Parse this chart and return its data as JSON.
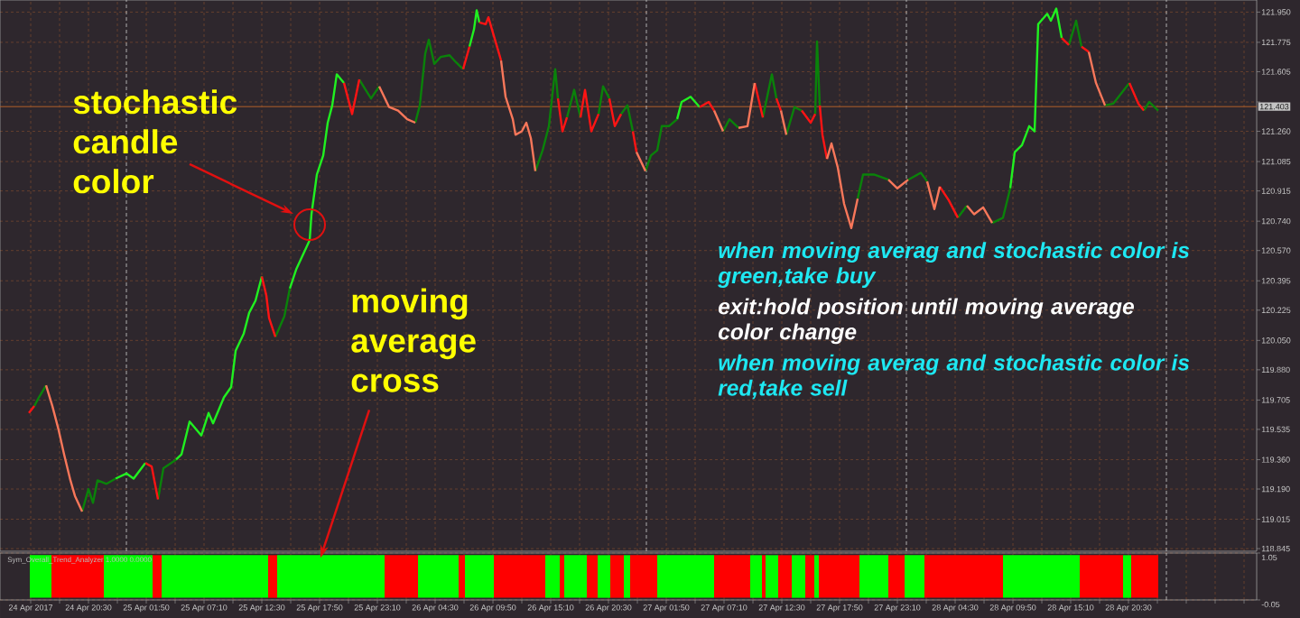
{
  "chart_data": [
    {
      "type": "line",
      "x": [
        "2017-04-24T15:00",
        "2017-04-24T15:30",
        "2017-04-24T15:55",
        "2017-04-24T16:35",
        "2017-04-24T17:10",
        "2017-04-24T17:45",
        "2017-04-24T18:15",
        "2017-04-24T18:50",
        "2017-04-24T19:15",
        "2017-04-24T19:55",
        "2017-04-24T20:30",
        "2017-04-24T20:55",
        "2017-04-24T21:20",
        "2017-04-24T22:10",
        "2017-04-24T23:00",
        "2017-04-25T00:00",
        "2017-04-25T00:40",
        "2017-04-25T01:45",
        "2017-04-25T02:20",
        "2017-04-25T02:55",
        "2017-04-25T03:25",
        "2017-04-25T04:35",
        "2017-04-25T05:05",
        "2017-04-25T05:50",
        "2017-04-25T06:55",
        "2017-04-25T07:35",
        "2017-04-25T08:00",
        "2017-04-25T09:00",
        "2017-04-25T09:40",
        "2017-04-25T10:05",
        "2017-04-25T10:50",
        "2017-04-25T11:20",
        "2017-04-25T11:55",
        "2017-04-25T12:30",
        "2017-04-25T12:55",
        "2017-04-25T13:10",
        "2017-04-25T13:45",
        "2017-04-25T14:35",
        "2017-04-25T15:05",
        "2017-04-25T15:40",
        "2017-04-25T16:55",
        "2017-04-25T17:05",
        "2017-04-25T17:35",
        "2017-04-25T18:10",
        "2017-04-25T18:35",
        "2017-04-25T19:00",
        "2017-04-25T19:25",
        "2017-04-25T20:05",
        "2017-04-25T20:50",
        "2017-04-25T21:30",
        "2017-04-25T22:05",
        "2017-04-25T22:35",
        "2017-04-25T23:20",
        "2017-04-26T00:15",
        "2017-04-26T01:05",
        "2017-04-26T01:55",
        "2017-04-26T02:40",
        "2017-04-26T03:05",
        "2017-04-26T03:35",
        "2017-04-26T03:55",
        "2017-04-26T04:25",
        "2017-04-26T05:00",
        "2017-04-26T05:50",
        "2017-04-26T06:25",
        "2017-04-26T07:05",
        "2017-04-26T07:40",
        "2017-04-26T08:05",
        "2017-04-26T08:20",
        "2017-04-26T08:35",
        "2017-04-26T09:10",
        "2017-04-26T09:25",
        "2017-04-26T09:50",
        "2017-04-26T10:10",
        "2017-04-26T10:35",
        "2017-04-26T11:00",
        "2017-04-26T11:40",
        "2017-04-26T11:55",
        "2017-04-26T12:30",
        "2017-04-26T12:55",
        "2017-04-26T13:20",
        "2017-04-26T13:45",
        "2017-04-26T14:25",
        "2017-04-26T15:00",
        "2017-04-26T15:35",
        "2017-04-26T15:50",
        "2017-04-26T16:15",
        "2017-04-26T16:40",
        "2017-04-26T17:20",
        "2017-04-26T17:55",
        "2017-04-26T18:20",
        "2017-04-26T18:55",
        "2017-04-26T19:35",
        "2017-04-26T20:00",
        "2017-04-26T20:35",
        "2017-04-26T21:05",
        "2017-04-26T21:40",
        "2017-04-26T22:15",
        "2017-04-26T22:45",
        "2017-04-26T23:05",
        "2017-04-26T23:55",
        "2017-04-27T00:25",
        "2017-04-27T01:00",
        "2017-04-27T01:25",
        "2017-04-27T02:05",
        "2017-04-27T02:50",
        "2017-04-27T03:15",
        "2017-04-27T04:05",
        "2017-04-27T04:55",
        "2017-04-27T05:45",
        "2017-04-27T06:15",
        "2017-04-27T07:05",
        "2017-04-27T07:40",
        "2017-04-27T08:30",
        "2017-04-27T09:20",
        "2017-04-27T10:00",
        "2017-04-27T10:45",
        "2017-04-27T11:35",
        "2017-04-27T12:00",
        "2017-04-27T12:25",
        "2017-04-27T12:55",
        "2017-04-27T13:40",
        "2017-04-27T14:20",
        "2017-04-27T15:10",
        "2017-04-27T15:35",
        "2017-04-27T15:45",
        "2017-04-27T16:00",
        "2017-04-27T16:15",
        "2017-04-27T16:40",
        "2017-04-27T17:05",
        "2017-04-27T17:40",
        "2017-04-27T18:15",
        "2017-04-27T18:55",
        "2017-04-27T19:30",
        "2017-04-27T20:00",
        "2017-04-27T21:00",
        "2017-04-27T22:20",
        "2017-04-27T23:10",
        "2017-04-28T00:10",
        "2017-04-28T01:20",
        "2017-04-28T01:55",
        "2017-04-28T02:35",
        "2017-04-28T03:05",
        "2017-04-28T03:55",
        "2017-04-28T04:45",
        "2017-04-28T05:35",
        "2017-04-28T06:15",
        "2017-04-28T07:05",
        "2017-04-28T07:55",
        "2017-04-28T08:55",
        "2017-04-28T09:35",
        "2017-04-28T10:00",
        "2017-04-28T10:40",
        "2017-04-28T11:20",
        "2017-04-28T11:50",
        "2017-04-28T12:10",
        "2017-04-28T13:00",
        "2017-04-28T13:20",
        "2017-04-28T13:50",
        "2017-04-28T14:20",
        "2017-04-28T15:00",
        "2017-04-28T15:40",
        "2017-04-28T16:10",
        "2017-04-28T16:50",
        "2017-04-28T17:30",
        "2017-04-28T18:20",
        "2017-04-28T19:05",
        "2017-04-28T20:35",
        "2017-04-28T21:25",
        "2017-04-28T21:55",
        "2017-04-28T22:25",
        "2017-04-28T23:15"
      ],
      "series": [
        {
          "color": "#20F020",
          "values": [
            null,
            null,
            null,
            null,
            null,
            null,
            null,
            null,
            null,
            null,
            null,
            null,
            null,
            null,
            119.25,
            119.28,
            119.25,
            119.34,
            null,
            null,
            null,
            119.36,
            119.39,
            119.58,
            119.5,
            119.63,
            119.57,
            119.72,
            119.78,
            119.99,
            120.09,
            120.21,
            120.28,
            120.42,
            null,
            null,
            null,
            null,
            120.35,
            120.46,
            120.63,
            120.78,
            121.01,
            121.12,
            121.31,
            121.41,
            121.59,
            121.54,
            null,
            null,
            null,
            null,
            null,
            null,
            null,
            null,
            null,
            null,
            null,
            null,
            null,
            null,
            null,
            null,
            null,
            121.75,
            121.85,
            121.96,
            121.89,
            null,
            null,
            null,
            null,
            null,
            null,
            null,
            null,
            null,
            null,
            null,
            null,
            null,
            null,
            null,
            null,
            null,
            null,
            null,
            null,
            null,
            null,
            null,
            null,
            null,
            null,
            null,
            null,
            null,
            null,
            null,
            null,
            null,
            null,
            null,
            121.33,
            121.43,
            121.46,
            121.4,
            null,
            null,
            null,
            null,
            null,
            null,
            null,
            null,
            null,
            null,
            null,
            null,
            null,
            null,
            null,
            null,
            null,
            null,
            null,
            null,
            null,
            null,
            null,
            null,
            null,
            null,
            null,
            null,
            null,
            null,
            null,
            null,
            null,
            null,
            null,
            null,
            null,
            null,
            null,
            null,
            null,
            120.93,
            121.14,
            121.18,
            121.29,
            121.26,
            121.88,
            121.94,
            121.9,
            121.97,
            121.8,
            null,
            null,
            null,
            null,
            null,
            null,
            null,
            null,
            null,
            null,
            null,
            null
          ]
        },
        {
          "color": "#0A820A",
          "values": [
            null,
            119.67,
            119.72,
            119.79,
            null,
            null,
            null,
            null,
            null,
            119.06,
            119.19,
            119.11,
            119.24,
            119.22,
            119.25,
            null,
            null,
            null,
            null,
            119.13,
            119.31,
            119.36,
            null,
            null,
            null,
            null,
            null,
            null,
            null,
            null,
            null,
            null,
            null,
            null,
            null,
            null,
            120.07,
            120.19,
            120.35,
            null,
            null,
            null,
            null,
            null,
            null,
            null,
            null,
            null,
            null,
            121.56,
            121.5,
            121.45,
            121.52,
            null,
            null,
            null,
            121.31,
            121.41,
            121.71,
            121.79,
            121.65,
            121.69,
            121.7,
            121.66,
            121.62,
            null,
            null,
            null,
            null,
            null,
            null,
            null,
            null,
            null,
            null,
            null,
            null,
            null,
            null,
            null,
            121.03,
            121.15,
            121.29,
            121.62,
            121.45,
            null,
            121.34,
            121.5,
            121.34,
            null,
            null,
            121.36,
            121.52,
            121.45,
            null,
            121.36,
            121.41,
            121.26,
            null,
            121.03,
            121.12,
            121.15,
            121.29,
            121.29,
            121.33,
            null,
            null,
            null,
            null,
            null,
            121.26,
            121.33,
            121.28,
            null,
            null,
            121.34,
            121.59,
            121.45,
            null,
            121.24,
            121.4,
            121.38,
            null,
            121.36,
            121.78,
            121.41,
            null,
            null,
            null,
            null,
            null,
            null,
            120.87,
            121.01,
            121.01,
            120.98,
            null,
            120.98,
            121.02,
            120.97,
            null,
            null,
            null,
            120.76,
            120.83,
            null,
            null,
            120.73,
            120.76,
            120.93,
            null,
            null,
            null,
            null,
            null,
            null,
            null,
            null,
            null,
            121.76,
            121.9,
            121.75,
            null,
            null,
            121.41,
            121.42,
            121.54,
            null,
            121.38,
            121.43,
            121.38
          ]
        },
        {
          "color": "#FF1414",
          "values": [
            119.63,
            119.67,
            null,
            null,
            null,
            null,
            null,
            null,
            null,
            null,
            null,
            null,
            null,
            null,
            null,
            null,
            null,
            119.34,
            119.32,
            119.13,
            null,
            null,
            null,
            null,
            null,
            null,
            null,
            null,
            null,
            null,
            null,
            null,
            null,
            120.42,
            120.31,
            120.18,
            120.07,
            null,
            null,
            null,
            null,
            null,
            null,
            null,
            null,
            null,
            null,
            121.54,
            121.36,
            121.56,
            null,
            null,
            null,
            null,
            null,
            null,
            null,
            null,
            null,
            null,
            null,
            null,
            null,
            null,
            121.62,
            121.75,
            null,
            null,
            121.89,
            121.88,
            121.92,
            121.83,
            121.76,
            121.67,
            null,
            null,
            null,
            null,
            null,
            null,
            null,
            null,
            null,
            null,
            121.45,
            121.26,
            121.34,
            null,
            121.34,
            121.5,
            121.26,
            121.36,
            null,
            121.45,
            121.29,
            121.36,
            null,
            121.26,
            121.14,
            null,
            null,
            null,
            null,
            null,
            null,
            null,
            null,
            121.4,
            121.43,
            121.38,
            null,
            null,
            null,
            null,
            121.54,
            121.34,
            null,
            121.45,
            121.38,
            null,
            null,
            121.38,
            121.31,
            121.36,
            null,
            121.41,
            121.24,
            121.1,
            null,
            null,
            null,
            null,
            null,
            null,
            null,
            null,
            null,
            null,
            null,
            null,
            null,
            120.94,
            120.86,
            120.76,
            null,
            null,
            null,
            null,
            null,
            null,
            null,
            null,
            null,
            null,
            null,
            null,
            null,
            null,
            121.8,
            121.76,
            null,
            121.75,
            121.72,
            null,
            null,
            null,
            121.54,
            121.42,
            121.38,
            null,
            null
          ]
        },
        {
          "color": "#F8775A",
          "values": [
            null,
            null,
            null,
            119.79,
            119.67,
            119.53,
            119.39,
            119.24,
            119.15,
            119.06,
            null,
            null,
            null,
            null,
            null,
            null,
            null,
            null,
            null,
            null,
            null,
            null,
            null,
            null,
            null,
            null,
            null,
            null,
            null,
            null,
            null,
            null,
            null,
            null,
            null,
            null,
            null,
            null,
            null,
            null,
            null,
            null,
            null,
            null,
            null,
            null,
            null,
            null,
            null,
            null,
            null,
            null,
            121.52,
            121.4,
            121.38,
            121.33,
            121.31,
            null,
            null,
            null,
            null,
            null,
            null,
            null,
            null,
            null,
            null,
            null,
            null,
            null,
            null,
            null,
            null,
            121.67,
            121.46,
            121.33,
            121.24,
            121.26,
            121.31,
            121.22,
            121.03,
            null,
            null,
            null,
            null,
            null,
            null,
            null,
            null,
            null,
            null,
            null,
            null,
            null,
            null,
            null,
            null,
            null,
            121.14,
            121.03,
            null,
            null,
            null,
            null,
            null,
            null,
            null,
            null,
            null,
            121.38,
            121.26,
            null,
            121.28,
            121.29,
            121.54,
            null,
            null,
            null,
            121.38,
            121.24,
            null,
            null,
            null,
            null,
            null,
            null,
            null,
            121.1,
            121.19,
            121.05,
            120.84,
            120.7,
            120.87,
            null,
            null,
            120.98,
            120.93,
            120.98,
            null,
            120.97,
            120.81,
            120.94,
            null,
            null,
            120.83,
            120.78,
            120.82,
            120.73,
            null,
            null,
            null,
            null,
            null,
            null,
            null,
            null,
            null,
            null,
            null,
            null,
            null,
            null,
            121.72,
            121.54,
            121.41,
            null,
            null,
            null,
            null,
            null,
            null
          ]
        }
      ],
      "xlim": [
        "2017-04-24T12:20",
        "2017-04-29T08:20"
      ],
      "ylim": [
        118.83,
        122.02
      ],
      "xticks": [
        {
          "value": "2017-04-24T15:10",
          "label": null
        },
        {
          "value": "2017-04-24T17:50",
          "label": null
        },
        {
          "value": "2017-04-24T20:30",
          "label": null
        },
        {
          "value": "2017-04-24T23:10",
          "label": null
        },
        {
          "value": "2017-04-25T01:50",
          "label": null
        },
        {
          "value": "2017-04-25T04:30",
          "label": null
        },
        {
          "value": "2017-04-25T07:10",
          "label": null
        },
        {
          "value": "2017-04-25T09:50",
          "label": null
        },
        {
          "value": "2017-04-25T12:30",
          "label": null
        },
        {
          "value": "2017-04-25T15:10",
          "label": null
        },
        {
          "value": "2017-04-25T17:50",
          "label": null
        },
        {
          "value": "2017-04-25T20:30",
          "label": null
        },
        {
          "value": "2017-04-25T23:10",
          "label": null
        },
        {
          "value": "2017-04-26T01:50",
          "label": null
        },
        {
          "value": "2017-04-26T04:30",
          "label": null
        },
        {
          "value": "2017-04-26T07:10",
          "label": null
        },
        {
          "value": "2017-04-26T09:50",
          "label": null
        },
        {
          "value": "2017-04-26T12:30",
          "label": null
        },
        {
          "value": "2017-04-26T15:10",
          "label": null
        },
        {
          "value": "2017-04-26T17:50",
          "label": null
        },
        {
          "value": "2017-04-26T20:30",
          "label": null
        },
        {
          "value": "2017-04-26T23:10",
          "label": null
        },
        {
          "value": "2017-04-27T01:50",
          "label": null
        },
        {
          "value": "2017-04-27T04:30",
          "label": null
        },
        {
          "value": "2017-04-27T07:10",
          "label": null
        },
        {
          "value": "2017-04-27T09:50",
          "label": null
        },
        {
          "value": "2017-04-27T12:30",
          "label": null
        },
        {
          "value": "2017-04-27T15:10",
          "label": null
        },
        {
          "value": "2017-04-27T17:50",
          "label": null
        },
        {
          "value": "2017-04-27T20:30",
          "label": null
        },
        {
          "value": "2017-04-27T23:10",
          "label": null
        },
        {
          "value": "2017-04-28T01:50",
          "label": null
        },
        {
          "value": "2017-04-28T04:30",
          "label": null
        },
        {
          "value": "2017-04-28T07:10",
          "label": null
        },
        {
          "value": "2017-04-28T09:50",
          "label": null
        },
        {
          "value": "2017-04-28T12:30",
          "label": null
        },
        {
          "value": "2017-04-28T15:10",
          "label": null
        },
        {
          "value": "2017-04-28T17:50",
          "label": null
        },
        {
          "value": "2017-04-28T20:30",
          "label": null
        },
        {
          "value": "2017-04-28T23:10",
          "label": null
        },
        {
          "value": "2017-04-29T01:50",
          "label": null
        },
        {
          "value": "2017-04-29T04:30",
          "label": null
        },
        {
          "value": "2017-04-29T07:10",
          "label": null
        }
      ],
      "yticks": [
        {
          "value": 121.95,
          "label": "121.950"
        },
        {
          "value": 121.775,
          "label": "121.775"
        },
        {
          "value": 121.605,
          "label": "121.605"
        },
        {
          "value": 121.43,
          "label": null
        },
        {
          "value": 121.26,
          "label": "121.260"
        },
        {
          "value": 121.085,
          "label": "121.085"
        },
        {
          "value": 120.915,
          "label": "120.915"
        },
        {
          "value": 120.74,
          "label": "120.740"
        },
        {
          "value": 120.57,
          "label": "120.570"
        },
        {
          "value": 120.395,
          "label": "120.395"
        },
        {
          "value": 120.225,
          "label": "120.225"
        },
        {
          "value": 120.05,
          "label": "120.050"
        },
        {
          "value": 119.88,
          "label": "119.880"
        },
        {
          "value": 119.705,
          "label": "119.705"
        },
        {
          "value": 119.535,
          "label": "119.535"
        },
        {
          "value": 119.36,
          "label": "119.360"
        },
        {
          "value": 119.19,
          "label": "119.190"
        },
        {
          "value": 119.015,
          "label": "119.015"
        },
        {
          "value": 118.845,
          "label": "118.845"
        }
      ],
      "tick_labels": "y",
      "grid": true,
      "ref_lines": [
        {
          "axis": "y",
          "value": 121.403,
          "label": "121.403",
          "color": "#B4602A"
        },
        {
          "axis": "x",
          "value": "2017-04-25T00:00",
          "color": "#D0D0D0",
          "line_style": "dashed"
        },
        {
          "axis": "x",
          "value": "2017-04-27T00:00",
          "color": "#D0D0D0",
          "line_style": "dashed"
        },
        {
          "axis": "x",
          "value": "2017-04-28T00:00",
          "color": "#D0D0D0",
          "line_style": "dashed"
        },
        {
          "axis": "x",
          "value": "2017-04-29T00:00",
          "color": "#D0D0D0",
          "line_style": "dashed"
        }
      ],
      "annotations": [
        {
          "text": "stochastic candle color",
          "x": "2017-04-25T16:55",
          "y": 120.72
        },
        "when moving averag and stochastic color is green,take buy",
        "exit:hold position until moving average color change",
        "when moving averag and stochastic color is red,take sell"
      ]
    },
    {
      "type": "histogram",
      "title": "Sym_Overall_Trend_Analyzer 1.0000 0.0000",
      "bins": [
        "2017-04-24T15:05",
        "2017-04-24T17:05",
        "2017-04-24T21:55",
        "2017-04-25T02:25",
        "2017-04-25T03:15",
        "2017-04-25T13:05",
        "2017-04-25T13:55",
        "2017-04-25T23:50",
        "2017-04-26T02:55",
        "2017-04-26T06:40",
        "2017-04-26T07:15",
        "2017-04-26T09:55",
        "2017-04-26T14:40",
        "2017-04-26T16:00",
        "2017-04-26T16:25",
        "2017-04-26T18:30",
        "2017-04-26T19:30",
        "2017-04-26T20:40",
        "2017-04-26T21:55",
        "2017-04-26T22:30",
        "2017-04-27T01:00",
        "2017-04-27T06:15",
        "2017-04-27T09:35",
        "2017-04-27T10:40",
        "2017-04-27T11:00",
        "2017-04-27T12:10",
        "2017-04-27T13:25",
        "2017-04-27T14:40",
        "2017-04-27T15:30",
        "2017-04-27T15:55",
        "2017-04-27T19:40",
        "2017-04-27T22:20",
        "2017-04-27T23:50",
        "2017-04-28T01:40",
        "2017-04-28T08:55",
        "2017-04-28T16:00",
        "2017-04-28T20:00",
        "2017-04-28T20:45",
        "2017-04-28T23:15"
      ],
      "values": [
        1,
        1,
        1,
        1,
        1,
        1,
        1,
        1,
        1,
        1,
        1,
        1,
        1,
        1,
        1,
        1,
        1,
        1,
        1,
        1,
        1,
        1,
        1,
        1,
        1,
        1,
        1,
        1,
        1,
        1,
        1,
        1,
        1,
        1,
        1,
        1,
        1,
        1
      ],
      "colors": [
        "#00FF00",
        "#FF0000",
        "#00FF00",
        "#FF0000",
        "#00FF00",
        "#FF0000",
        "#00FF00",
        "#FF0000",
        "#00FF00",
        "#FF0000",
        "#00FF00",
        "#FF0000",
        "#00FF00",
        "#FF0000",
        "#00FF00",
        "#FF0000",
        "#00FF00",
        "#FF0000",
        "#00FF00",
        "#FF0000",
        "#00FF00",
        "#FF0000",
        "#00FF00",
        "#FF0000",
        "#00FF00",
        "#FF0000",
        "#00FF00",
        "#FF0000",
        "#00FF00",
        "#FF0000",
        "#00FF00",
        "#FF0000",
        "#00FF00",
        "#FF0000",
        "#00FF00",
        "#FF0000",
        "#00FF00",
        "#FF0000"
      ],
      "xlim": [
        "2017-04-24T12:20",
        "2017-04-29T08:20"
      ],
      "ylim": [
        -0.05,
        1.05
      ],
      "xticks": [
        {
          "value": "2017-04-24T15:10",
          "label": "24 Apr 2017"
        },
        {
          "value": "2017-04-24T17:50",
          "label": null
        },
        {
          "value": "2017-04-24T20:30",
          "label": "24 Apr 20:30"
        },
        {
          "value": "2017-04-24T23:10",
          "label": null
        },
        {
          "value": "2017-04-25T01:50",
          "label": "25 Apr 01:50"
        },
        {
          "value": "2017-04-25T04:30",
          "label": null
        },
        {
          "value": "2017-04-25T07:10",
          "label": "25 Apr 07:10"
        },
        {
          "value": "2017-04-25T09:50",
          "label": null
        },
        {
          "value": "2017-04-25T12:30",
          "label": "25 Apr 12:30"
        },
        {
          "value": "2017-04-25T15:10",
          "label": null
        },
        {
          "value": "2017-04-25T17:50",
          "label": "25 Apr 17:50"
        },
        {
          "value": "2017-04-25T20:30",
          "label": null
        },
        {
          "value": "2017-04-25T23:10",
          "label": "25 Apr 23:10"
        },
        {
          "value": "2017-04-26T01:50",
          "label": null
        },
        {
          "value": "2017-04-26T04:30",
          "label": "26 Apr 04:30"
        },
        {
          "value": "2017-04-26T07:10",
          "label": null
        },
        {
          "value": "2017-04-26T09:50",
          "label": "26 Apr 09:50"
        },
        {
          "value": "2017-04-26T12:30",
          "label": null
        },
        {
          "value": "2017-04-26T15:10",
          "label": "26 Apr 15:10"
        },
        {
          "value": "2017-04-26T17:50",
          "label": null
        },
        {
          "value": "2017-04-26T20:30",
          "label": "26 Apr 20:30"
        },
        {
          "value": "2017-04-26T23:10",
          "label": null
        },
        {
          "value": "2017-04-27T01:50",
          "label": "27 Apr 01:50"
        },
        {
          "value": "2017-04-27T04:30",
          "label": null
        },
        {
          "value": "2017-04-27T07:10",
          "label": "27 Apr 07:10"
        },
        {
          "value": "2017-04-27T09:50",
          "label": null
        },
        {
          "value": "2017-04-27T12:30",
          "label": "27 Apr 12:30"
        },
        {
          "value": "2017-04-27T15:10",
          "label": null
        },
        {
          "value": "2017-04-27T17:50",
          "label": "27 Apr 17:50"
        },
        {
          "value": "2017-04-27T20:30",
          "label": null
        },
        {
          "value": "2017-04-27T23:10",
          "label": "27 Apr 23:10"
        },
        {
          "value": "2017-04-28T01:50",
          "label": null
        },
        {
          "value": "2017-04-28T04:30",
          "label": "28 Apr 04:30"
        },
        {
          "value": "2017-04-28T07:10",
          "label": null
        },
        {
          "value": "2017-04-28T09:50",
          "label": "28 Apr 09:50"
        },
        {
          "value": "2017-04-28T12:30",
          "label": null
        },
        {
          "value": "2017-04-28T15:10",
          "label": "28 Apr 15:10"
        },
        {
          "value": "2017-04-28T17:50",
          "label": null
        },
        {
          "value": "2017-04-28T20:30",
          "label": "28 Apr 20:30"
        },
        {
          "value": "2017-04-28T23:10",
          "label": null
        },
        {
          "value": "2017-04-29T01:50",
          "label": null
        },
        {
          "value": "2017-04-29T04:30",
          "label": null
        },
        {
          "value": "2017-04-29T07:10",
          "label": null
        }
      ],
      "yticks": [
        1.05,
        -0.05
      ],
      "grid": true,
      "ref_lines": [
        {
          "axis": "x",
          "value": "2017-04-29T00:00",
          "color": "#D0D0D0",
          "line_style": "dashed"
        }
      ],
      "annotations": [
        {
          "text": "moving average cross",
          "x": "2017-04-25T17:55",
          "y": 1
        }
      ]
    }
  ]
}
